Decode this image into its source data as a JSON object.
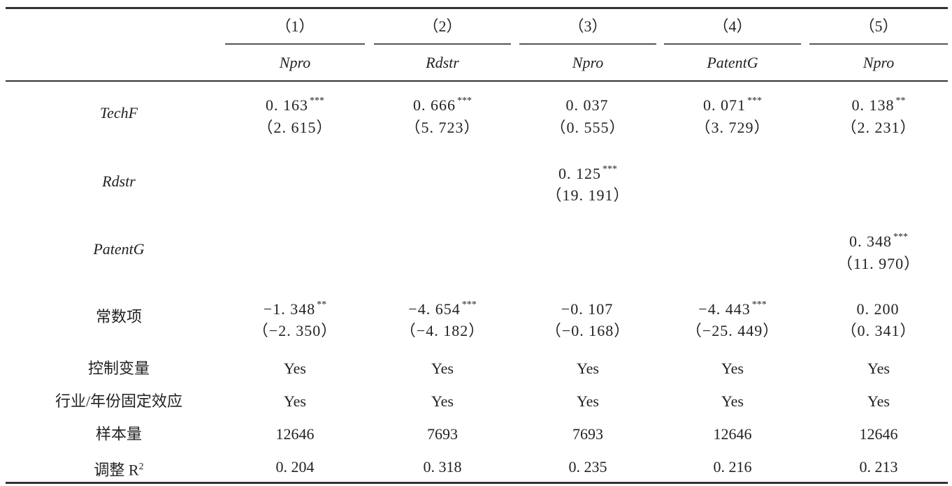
{
  "columns": [
    {
      "num": "（1）",
      "var": "Npro"
    },
    {
      "num": "（2）",
      "var": "Rdstr"
    },
    {
      "num": "（3）",
      "var": "Npro"
    },
    {
      "num": "（4）",
      "var": "PatentG"
    },
    {
      "num": "（5）",
      "var": "Npro"
    }
  ],
  "rows": {
    "techf": {
      "label": "TechF",
      "cells": [
        {
          "coef": "0. 163",
          "stars": "***",
          "t": "（2. 615）"
        },
        {
          "coef": "0. 666",
          "stars": "***",
          "t": "（5. 723）"
        },
        {
          "coef": "0. 037",
          "stars": "",
          "t": "（0. 555）"
        },
        {
          "coef": "0. 071",
          "stars": "***",
          "t": "（3. 729）"
        },
        {
          "coef": "0. 138",
          "stars": "**",
          "t": "（2. 231）"
        }
      ]
    },
    "rdstr": {
      "label": "Rdstr",
      "cells": [
        {
          "coef": "",
          "stars": "",
          "t": ""
        },
        {
          "coef": "",
          "stars": "",
          "t": ""
        },
        {
          "coef": "0. 125",
          "stars": "***",
          "t": "（19. 191）"
        },
        {
          "coef": "",
          "stars": "",
          "t": ""
        },
        {
          "coef": "",
          "stars": "",
          "t": ""
        }
      ]
    },
    "patentg": {
      "label": "PatentG",
      "cells": [
        {
          "coef": "",
          "stars": "",
          "t": ""
        },
        {
          "coef": "",
          "stars": "",
          "t": ""
        },
        {
          "coef": "",
          "stars": "",
          "t": ""
        },
        {
          "coef": "",
          "stars": "",
          "t": ""
        },
        {
          "coef": "0. 348",
          "stars": "***",
          "t": "（11. 970）"
        }
      ]
    },
    "const": {
      "label": "常数项",
      "cells": [
        {
          "coef": "−1. 348",
          "stars": "**",
          "t": "（−2. 350）"
        },
        {
          "coef": "−4. 654",
          "stars": "***",
          "t": "（−4. 182）"
        },
        {
          "coef": "−0. 107",
          "stars": "",
          "t": "（−0. 168）"
        },
        {
          "coef": "−4. 443",
          "stars": "***",
          "t": "（−25. 449）"
        },
        {
          "coef": "0. 200",
          "stars": "",
          "t": "（0. 341）"
        }
      ]
    },
    "controls": {
      "label": "控制变量",
      "values": [
        "Yes",
        "Yes",
        "Yes",
        "Yes",
        "Yes"
      ]
    },
    "fe": {
      "label": "行业/年份固定效应",
      "values": [
        "Yes",
        "Yes",
        "Yes",
        "Yes",
        "Yes"
      ]
    },
    "n": {
      "label": "样本量",
      "values": [
        "12646",
        "7693",
        "7693",
        "12646",
        "12646"
      ]
    },
    "r2": {
      "label": "调整 R",
      "label_sup": "2",
      "values": [
        "0. 204",
        "0. 318",
        "0. 235",
        "0. 216",
        "0. 213"
      ]
    }
  }
}
